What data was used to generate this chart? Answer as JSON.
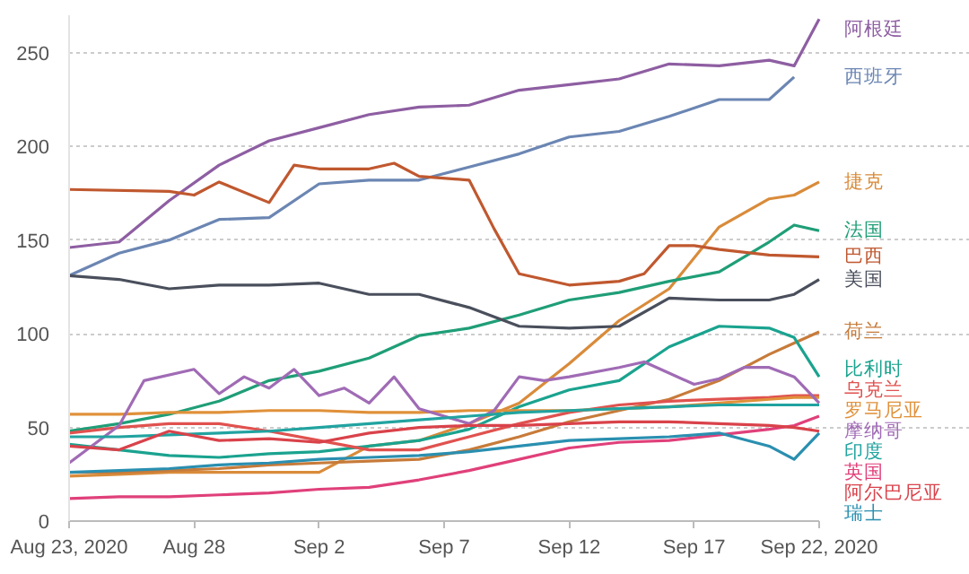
{
  "chart_data": {
    "type": "line",
    "x": [
      "2020-08-23",
      "2020-08-25",
      "2020-08-27",
      "2020-08-29",
      "2020-08-31",
      "2020-09-02",
      "2020-09-04",
      "2020-09-06",
      "2020-09-08",
      "2020-09-10",
      "2020-09-12",
      "2020-09-14",
      "2020-09-16",
      "2020-09-18",
      "2020-09-20",
      "2020-09-21",
      "2020-09-22"
    ],
    "xlim": [
      "2020-08-23",
      "2020-09-22"
    ],
    "xticks": [
      {
        "value": "2020-08-23",
        "label": "Aug 23, 2020"
      },
      {
        "value": "2020-08-28",
        "label": "Aug 28"
      },
      {
        "value": "2020-09-02",
        "label": "Sep 2"
      },
      {
        "value": "2020-09-07",
        "label": "Sep 7"
      },
      {
        "value": "2020-09-12",
        "label": "Sep 12"
      },
      {
        "value": "2020-09-17",
        "label": "Sep 17"
      },
      {
        "value": "2020-09-22",
        "label": "Sep 22, 2020"
      }
    ],
    "ylim": [
      0,
      270
    ],
    "yticks": [
      0,
      50,
      100,
      150,
      200,
      250
    ],
    "grid": "y",
    "series": [
      {
        "name": "阿根廷",
        "color": "#8e5ea2",
        "values": [
          146,
          149,
          171,
          190,
          203,
          210,
          217,
          221,
          222,
          230,
          233,
          236,
          244,
          243,
          246,
          243,
          268
        ]
      },
      {
        "name": "西班牙",
        "color": "#6b86b3",
        "values": [
          131,
          143,
          150,
          161,
          162,
          180,
          182,
          182,
          189,
          196,
          205,
          208,
          216,
          225,
          225,
          237,
          null
        ]
      },
      {
        "name": "捷克",
        "color": "#d98b3a",
        "values": [
          24,
          25,
          26,
          26,
          26,
          26,
          40,
          43,
          52,
          63,
          84,
          107,
          124,
          157,
          172,
          174,
          181
        ]
      },
      {
        "name": "法国",
        "color": "#1f9e77",
        "values": [
          48,
          52,
          57,
          64,
          75,
          80,
          87,
          99,
          103,
          110,
          118,
          122,
          128,
          133,
          149,
          158,
          155
        ]
      },
      {
        "name": "巴西",
        "color": "#c0582f",
        "x": [
          "2020-08-23",
          "2020-08-27",
          "2020-08-28",
          "2020-08-29",
          "2020-08-31",
          "2020-09-01",
          "2020-09-02",
          "2020-09-04",
          "2020-09-05",
          "2020-09-06",
          "2020-09-08",
          "2020-09-09",
          "2020-09-10",
          "2020-09-12",
          "2020-09-14",
          "2020-09-15",
          "2020-09-16",
          "2020-09-17",
          "2020-09-18",
          "2020-09-20",
          "2020-09-22"
        ],
        "values": [
          177,
          176,
          174,
          181,
          170,
          190,
          188,
          188,
          191,
          184,
          182,
          156,
          132,
          126,
          128,
          132,
          147,
          147,
          145,
          142,
          141
        ]
      },
      {
        "name": "美国",
        "color": "#4a4f5c",
        "values": [
          131,
          129,
          124,
          126,
          126,
          127,
          121,
          121,
          114,
          104,
          103,
          104,
          119,
          118,
          118,
          121,
          129
        ]
      },
      {
        "name": "荷兰",
        "color": "#c77b3a",
        "values": [
          26,
          26,
          27,
          28,
          30,
          31,
          32,
          33,
          38,
          45,
          53,
          59,
          65,
          75,
          89,
          95,
          101
        ]
      },
      {
        "name": "比利时",
        "color": "#1aa38f",
        "values": [
          41,
          38,
          35,
          34,
          36,
          37,
          40,
          43,
          49,
          61,
          70,
          75,
          93,
          104,
          103,
          98,
          77
        ]
      },
      {
        "name": "乌克兰",
        "color": "#e0524f",
        "values": [
          47,
          50,
          52,
          52,
          48,
          43,
          38,
          38,
          45,
          52,
          58,
          62,
          64,
          65,
          66,
          67,
          67
        ]
      },
      {
        "name": "罗马尼亚",
        "color": "#e0913a",
        "values": [
          57,
          57,
          58,
          58,
          59,
          59,
          58,
          58,
          59,
          59,
          59,
          60,
          61,
          63,
          65,
          66,
          66
        ]
      },
      {
        "name": "摩纳哥",
        "color": "#a06bb5",
        "x": [
          "2020-08-23",
          "2020-08-25",
          "2020-08-26",
          "2020-08-28",
          "2020-08-29",
          "2020-08-30",
          "2020-08-31",
          "2020-09-01",
          "2020-09-02",
          "2020-09-03",
          "2020-09-04",
          "2020-09-05",
          "2020-09-06",
          "2020-09-08",
          "2020-09-09",
          "2020-09-10",
          "2020-09-11",
          "2020-09-12",
          "2020-09-14",
          "2020-09-15",
          "2020-09-16",
          "2020-09-17",
          "2020-09-18",
          "2020-09-19",
          "2020-09-20",
          "2020-09-21",
          "2020-09-22"
        ],
        "values": [
          31,
          51,
          75,
          81,
          68,
          77,
          71,
          81,
          67,
          71,
          63,
          77,
          60,
          52,
          59,
          77,
          75,
          77,
          82,
          85,
          79,
          73,
          76,
          82,
          82,
          77,
          63
        ]
      },
      {
        "name": "印度",
        "color": "#21a3a0",
        "values": [
          45,
          45,
          46,
          47,
          48,
          50,
          52,
          54,
          56,
          58,
          59,
          60,
          61,
          62,
          62,
          62,
          62
        ]
      },
      {
        "name": "英国",
        "color": "#e0407a",
        "values": [
          12,
          13,
          13,
          14,
          15,
          17,
          18,
          22,
          27,
          33,
          39,
          42,
          43,
          46,
          49,
          51,
          56
        ]
      },
      {
        "name": "阿尔巴尼亚",
        "color": "#d9424a",
        "values": [
          40,
          38,
          48,
          43,
          44,
          42,
          47,
          50,
          51,
          51,
          52,
          53,
          53,
          52,
          51,
          50,
          48
        ]
      },
      {
        "name": "瑞士",
        "color": "#2a8fb0",
        "values": [
          26,
          27,
          28,
          30,
          31,
          33,
          34,
          35,
          37,
          40,
          43,
          44,
          45,
          47,
          40,
          33,
          47
        ]
      }
    ]
  }
}
